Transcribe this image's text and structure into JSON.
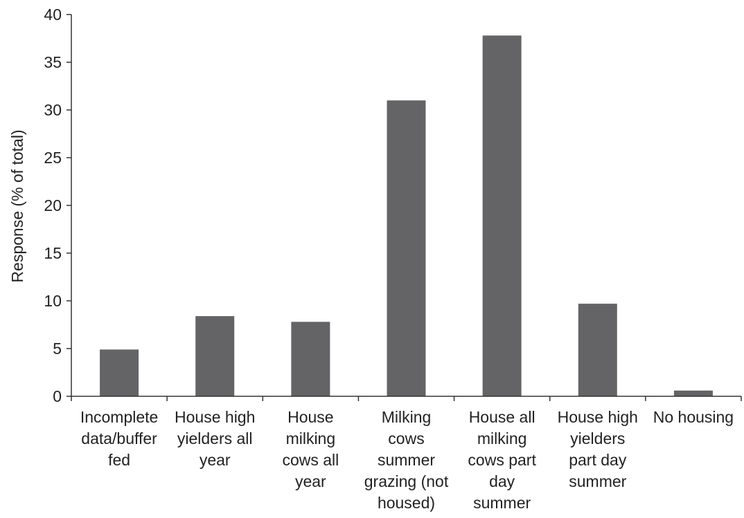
{
  "chart_data": {
    "type": "bar",
    "title": "",
    "ylabel": "Response (% of total)",
    "xlabel": "",
    "ylim": [
      0,
      40
    ],
    "yticks": [
      0,
      5,
      10,
      15,
      20,
      25,
      30,
      35,
      40
    ],
    "grid": false,
    "legend": "none",
    "bar_color": "#646466",
    "categories": [
      [
        "Incomplete",
        "data/buffer",
        "fed"
      ],
      [
        "House high",
        "yielders all",
        "year"
      ],
      [
        "House",
        "milking",
        "cows all",
        "year"
      ],
      [
        "Milking",
        "cows",
        "summer",
        "grazing (not",
        "housed)"
      ],
      [
        "House all",
        "milking",
        "cows part",
        "day",
        "summer"
      ],
      [
        "House high",
        "yielders",
        "part day",
        "summer"
      ],
      [
        "No housing"
      ]
    ],
    "values": [
      4.9,
      8.4,
      7.8,
      31.0,
      37.8,
      9.7,
      0.6
    ]
  }
}
